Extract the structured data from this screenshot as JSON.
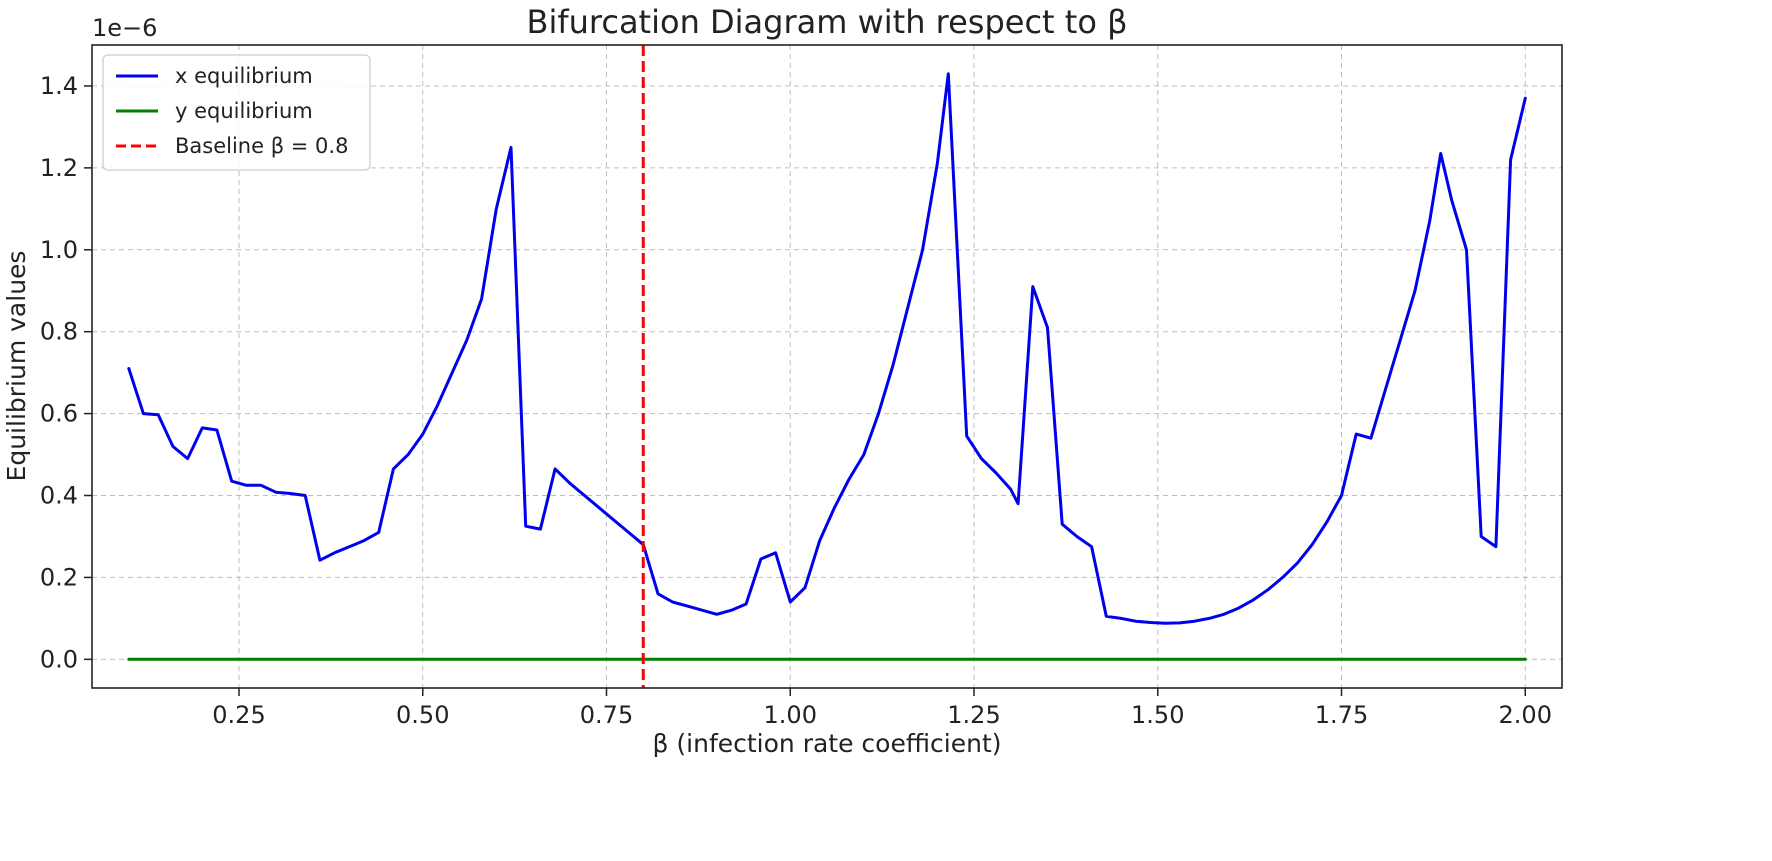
{
  "chart_data": {
    "type": "line",
    "title": "Bifurcation Diagram with respect to β",
    "xlabel": "β (infection rate coefficient)",
    "ylabel": "Equilibrium values",
    "y_offset_label": "1e−6",
    "xlim": [
      0.05,
      2.05
    ],
    "ylim": [
      -0.07,
      1.5
    ],
    "x_ticks": [
      0.25,
      0.5,
      0.75,
      1.0,
      1.25,
      1.5,
      1.75,
      2.0
    ],
    "x_tick_labels": [
      "0.25",
      "0.50",
      "0.75",
      "1.00",
      "1.25",
      "1.50",
      "1.75",
      "2.00"
    ],
    "y_ticks": [
      0.0,
      0.2,
      0.4,
      0.6,
      0.8,
      1.0,
      1.2,
      1.4
    ],
    "y_tick_labels": [
      "0.0",
      "0.2",
      "0.4",
      "0.6",
      "0.8",
      "1.0",
      "1.2",
      "1.4"
    ],
    "grid": true,
    "legend_position": "top-left",
    "series": [
      {
        "name": "x equilibrium",
        "color": "#0000ee",
        "style": "solid",
        "x": [
          0.1,
          0.12,
          0.14,
          0.16,
          0.18,
          0.2,
          0.22,
          0.24,
          0.26,
          0.28,
          0.3,
          0.32,
          0.34,
          0.36,
          0.38,
          0.4,
          0.42,
          0.44,
          0.46,
          0.48,
          0.5,
          0.52,
          0.54,
          0.56,
          0.58,
          0.6,
          0.62,
          0.64,
          0.66,
          0.68,
          0.7,
          0.72,
          0.74,
          0.76,
          0.78,
          0.8,
          0.82,
          0.84,
          0.86,
          0.88,
          0.9,
          0.92,
          0.94,
          0.96,
          0.98,
          1.0,
          1.02,
          1.04,
          1.06,
          1.08,
          1.1,
          1.12,
          1.14,
          1.16,
          1.18,
          1.2,
          1.215,
          1.24,
          1.26,
          1.28,
          1.3,
          1.31,
          1.33,
          1.35,
          1.37,
          1.39,
          1.41,
          1.43,
          1.45,
          1.47,
          1.49,
          1.51,
          1.53,
          1.55,
          1.57,
          1.59,
          1.61,
          1.63,
          1.65,
          1.67,
          1.69,
          1.71,
          1.73,
          1.75,
          1.77,
          1.79,
          1.81,
          1.83,
          1.85,
          1.87,
          1.885,
          1.9,
          1.92,
          1.94,
          1.96,
          1.98,
          2.0
        ],
        "values": [
          0.71,
          0.6,
          0.597,
          0.52,
          0.49,
          0.565,
          0.56,
          0.435,
          0.425,
          0.425,
          0.408,
          0.405,
          0.4,
          0.242,
          0.26,
          0.275,
          0.29,
          0.31,
          0.465,
          0.5,
          0.55,
          0.62,
          0.7,
          0.78,
          0.88,
          1.1,
          1.25,
          0.325,
          0.318,
          0.465,
          0.43,
          0.4,
          0.37,
          0.34,
          0.31,
          0.28,
          0.16,
          0.14,
          0.13,
          0.12,
          0.11,
          0.12,
          0.135,
          0.245,
          0.26,
          0.14,
          0.175,
          0.29,
          0.37,
          0.44,
          0.5,
          0.6,
          0.72,
          0.86,
          1.0,
          1.21,
          1.43,
          0.545,
          0.49,
          0.455,
          0.415,
          0.38,
          0.91,
          0.81,
          0.33,
          0.3,
          0.275,
          0.105,
          0.1,
          0.093,
          0.09,
          0.088,
          0.089,
          0.093,
          0.1,
          0.11,
          0.125,
          0.145,
          0.17,
          0.2,
          0.235,
          0.28,
          0.335,
          0.4,
          0.55,
          0.54,
          0.66,
          0.78,
          0.9,
          1.07,
          1.235,
          1.12,
          1.0,
          0.3,
          0.275,
          1.22,
          1.37
        ]
      },
      {
        "name": "y equilibrium",
        "color": "#008000",
        "style": "solid",
        "x": [
          0.1,
          2.0
        ],
        "values": [
          0.0,
          0.0
        ]
      }
    ],
    "annotations": [
      {
        "type": "vline",
        "name": "Baseline β = 0.8",
        "x": 0.8,
        "color": "#ff0000",
        "style": "dashed"
      }
    ]
  }
}
